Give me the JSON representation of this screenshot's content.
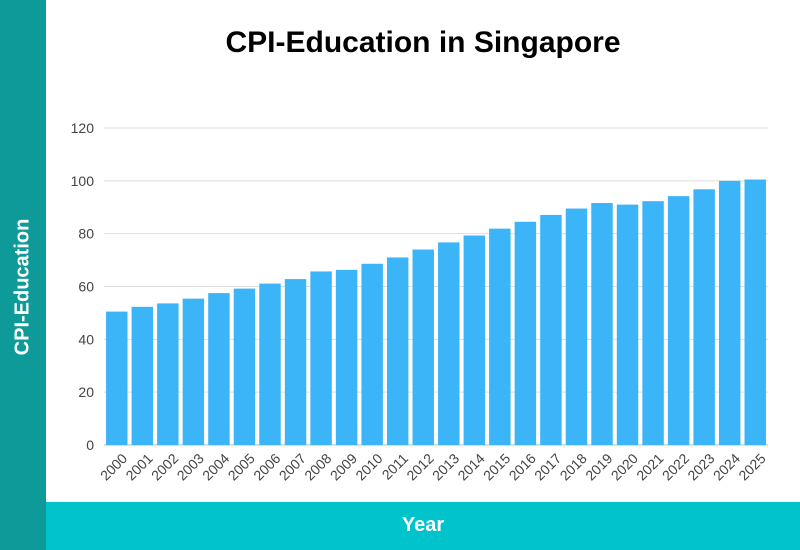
{
  "chart_data": {
    "type": "bar",
    "title": "CPI-Education in Singapore",
    "xlabel": "Year",
    "ylabel": "CPI-Education",
    "categories": [
      "2000",
      "2001",
      "2002",
      "2003",
      "2004",
      "2005",
      "2006",
      "2007",
      "2008",
      "2009",
      "2010",
      "2011",
      "2012",
      "2013",
      "2014",
      "2015",
      "2016",
      "2017",
      "2018",
      "2019",
      "2020",
      "2021",
      "2022",
      "2023",
      "2024",
      "2025"
    ],
    "values": [
      50.5,
      52.3,
      53.6,
      55.4,
      57.5,
      59.2,
      61.1,
      62.8,
      65.7,
      66.3,
      68.6,
      71.0,
      74.0,
      76.7,
      79.3,
      81.9,
      84.5,
      87.1,
      89.5,
      91.6,
      91.0,
      92.3,
      94.2,
      96.8,
      100.0,
      100.5
    ],
    "ylim": [
      0,
      120
    ],
    "yticks": [
      0,
      20,
      40,
      60,
      80,
      100,
      120
    ],
    "grid": true,
    "colors": {
      "bar": "#3cb4f8",
      "grid": "#dddddd",
      "ylabel_band": "#0e9a98",
      "xlabel_band": "#00c3cc"
    }
  }
}
